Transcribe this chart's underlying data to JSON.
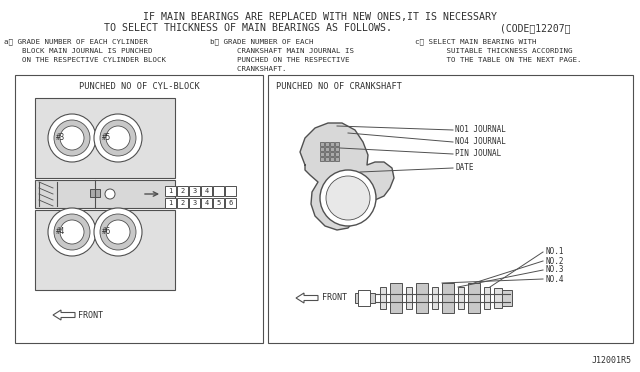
{
  "bg_color": "#ffffff",
  "line_color": "#505050",
  "text_color": "#303030",
  "title_line1": "IF MAIN BEARINGS ARE REPLACED WITH NEW ONES,IT IS NECESSARY",
  "title_line2": "TO SELECT THICKNESS OF MAIN BEARINGS AS FOLLOWS.",
  "code_text": "(CODE） 12207（",
  "subtitle_a": "a） GRADE NUMBER OF EACH CYLINDER\n    BLOCK MAIN JOURNAL IS PUNCHED\n    ON THE RESPECTIVE CYLINDER BLOCK",
  "subtitle_b": "b） GRADE NUMBER OF EACH\n      CRANKSHAFT MAIN JOURNAL IS\n      PUNCHED ON THE RESPECTIVE\n      CRANKSHAFT.",
  "subtitle_c": "c） SELECT MAIN BEARING WITH\n        SUITABLE THICKNESS ACCORDING\n        TO THE TABLE ON THE NEXT PAGE.",
  "box1_title": "PUNCHED NO OF CYL-BLOCK",
  "box2_title": "PUNCHED NO OF CRANKSHAFT",
  "label_no1_journal": "NO1 JOURNAL",
  "label_no4_journal": "NO4 JOURNAL",
  "label_pin_journal": "PIN JOUNAL",
  "label_date": "DATE",
  "label_no1": "NO.1",
  "label_no2": "NO.2",
  "label_no3": "NO.3",
  "label_no4": "NO.4",
  "label_front_left": "FRONT",
  "label_front_right": "FRONT",
  "label_3": "#3",
  "label_5": "#5",
  "label_4": "#4",
  "label_6": "#6",
  "watermark": "J12001R5",
  "figsize": [
    6.4,
    3.72
  ],
  "dpi": 100
}
